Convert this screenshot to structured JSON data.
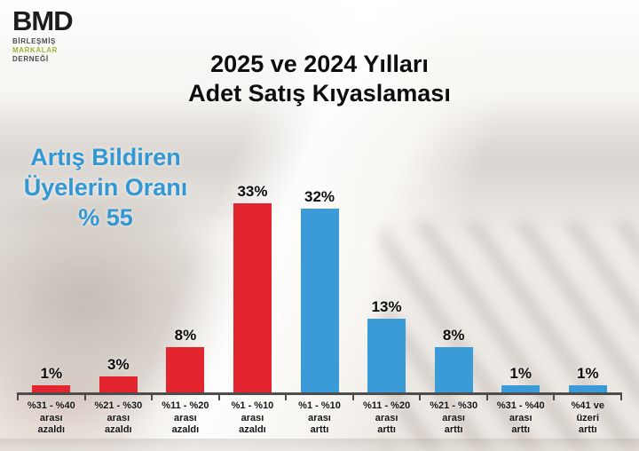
{
  "logo": {
    "brand": "BMD",
    "subtitle_line1": "BİRLEŞMİŞ",
    "subtitle_line2": "MARKALAR",
    "subtitle_line3": "DERNEĞİ",
    "accent_color": "#9cb53b"
  },
  "title": {
    "line1": "2025 ve 2024 Yılları",
    "line2": "Adet Satış Kıyaslaması"
  },
  "highlight": {
    "line1": "Artış Bildiren",
    "line2": "Üyelerin Oranı",
    "line3": "% 55",
    "color": "#3297d3"
  },
  "chart_data": {
    "type": "bar",
    "title": "2025 ve 2024 Yılları Adet Satış Kıyaslaması",
    "annotation": "Artış Bildiren Üyelerin Oranı % 55",
    "categories": [
      "%31 - %40 arası azaldı",
      "%21 - %30 arası azaldı",
      "%11 - %20 arası azaldı",
      "%1 - %10 arası azaldı",
      "%1 - %10 arası arttı",
      "%11 - %20 arası arttı",
      "%21 - %30 arası arttı",
      "%31 - %40 arası arttı",
      "%41 ve üzeri arttı"
    ],
    "category_lines": [
      [
        "%31 - %40",
        "arası",
        "azaldı"
      ],
      [
        "%21 - %30",
        "arası",
        "azaldı"
      ],
      [
        "%11 - %20",
        "arası",
        "azaldı"
      ],
      [
        "%1 - %10",
        "arası",
        "azaldı"
      ],
      [
        "%1 - %10",
        "arası",
        "arttı"
      ],
      [
        "%11 - %20",
        "arası",
        "arttı"
      ],
      [
        "%21 - %30",
        "arası",
        "arttı"
      ],
      [
        "%31 - %40",
        "arası",
        "arttı"
      ],
      [
        "%41 ve",
        "üzeri",
        "arttı"
      ]
    ],
    "values": [
      1,
      3,
      8,
      33,
      32,
      13,
      8,
      1,
      1
    ],
    "value_labels": [
      "1%",
      "3%",
      "8%",
      "33%",
      "32%",
      "13%",
      "8%",
      "1%",
      "1%"
    ],
    "bar_colors": [
      "#e32530",
      "#e32530",
      "#e32530",
      "#e32530",
      "#3a9bd8",
      "#3a9bd8",
      "#3a9bd8",
      "#3a9bd8",
      "#3a9bd8"
    ],
    "decrease_color": "#e32530",
    "increase_color": "#3a9bd8",
    "xlabel": "",
    "ylabel": "",
    "ylim": [
      0,
      35
    ],
    "grid": false,
    "legend_position": "none"
  }
}
